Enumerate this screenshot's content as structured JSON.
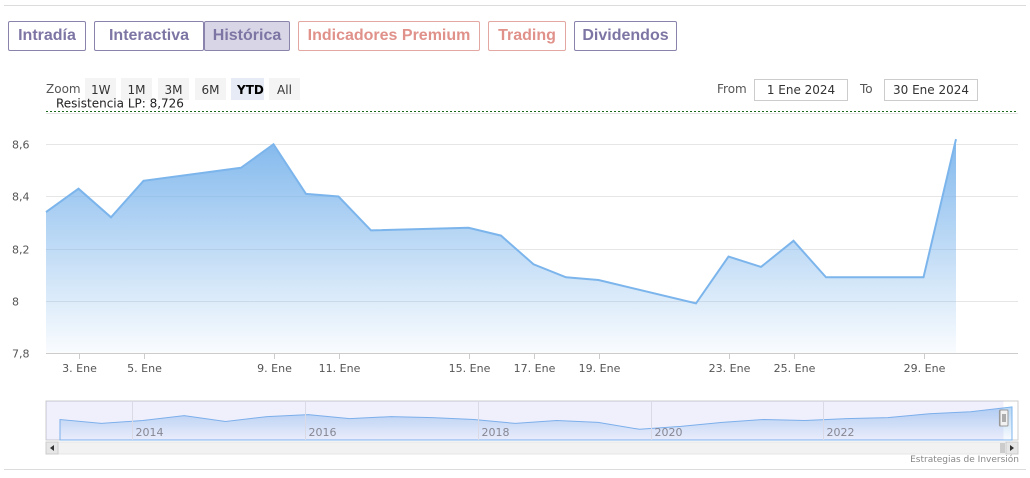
{
  "tabs": [
    {
      "label": "Intradía",
      "active": false,
      "premium": false
    },
    {
      "label": "Interactiva",
      "active": false,
      "premium": false
    },
    {
      "label": "Histórica",
      "active": true,
      "premium": false
    },
    {
      "label": "Indicadores Premium",
      "active": false,
      "premium": true
    },
    {
      "label": "Trading",
      "active": false,
      "premium": true
    },
    {
      "label": "Dividendos",
      "active": false,
      "premium": false
    }
  ],
  "range_selector": {
    "zoom_label": "Zoom",
    "buttons": [
      "1W",
      "1M",
      "3M",
      "6M",
      "YTD",
      "All"
    ],
    "selected": "YTD",
    "from_label": "From",
    "from_value": "1 Ene 2024",
    "to_label": "To",
    "to_value": "30 Ene 2024"
  },
  "colors": {
    "line": "#7cb5ec",
    "area_top": "#7cb5ec",
    "area_bottom": "#ffffff",
    "resistance_line": "#1c6b1c",
    "tab_border": "#8a84ad",
    "tab_text": "#7d75a4",
    "premium_text": "#e0918a"
  },
  "chart_data": {
    "type": "area",
    "x": [
      "2 Ene",
      "3 Ene",
      "4 Ene",
      "5 Ene",
      "8 Ene",
      "9 Ene",
      "10 Ene",
      "11 Ene",
      "12 Ene",
      "15 Ene",
      "16 Ene",
      "17 Ene",
      "18 Ene",
      "19 Ene",
      "22 Ene",
      "23 Ene",
      "24 Ene",
      "25 Ene",
      "26 Ene",
      "29 Ene",
      "30 Ene"
    ],
    "x_day": [
      2,
      3,
      4,
      5,
      8,
      9,
      10,
      11,
      12,
      15,
      16,
      17,
      18,
      19,
      22,
      23,
      24,
      25,
      26,
      29,
      30
    ],
    "values": [
      8.34,
      8.43,
      8.32,
      8.46,
      8.51,
      8.6,
      8.41,
      8.4,
      8.27,
      8.28,
      8.25,
      8.14,
      8.09,
      8.08,
      7.99,
      8.17,
      8.13,
      8.23,
      8.09,
      8.09,
      8.62
    ],
    "ylim": [
      7.8,
      8.72
    ],
    "yticks": [
      {
        "value": 7.8,
        "label": "7,8"
      },
      {
        "value": 8.0,
        "label": "8"
      },
      {
        "value": 8.2,
        "label": "8,2"
      },
      {
        "value": 8.4,
        "label": "8,4"
      },
      {
        "value": 8.6,
        "label": "8,6"
      }
    ],
    "xticks": [
      "3. Ene",
      "5. Ene",
      "9. Ene",
      "11. Ene",
      "15. Ene",
      "17. Ene",
      "19. Ene",
      "23. Ene",
      "25. Ene",
      "29. Ene"
    ],
    "grid": true,
    "plot_lines": [
      {
        "label": "Resistencia LP: 8,726",
        "value": 8.726,
        "style": "dashed"
      }
    ],
    "navigator": {
      "type": "area",
      "xticks": [
        "2014",
        "2016",
        "2018",
        "2020",
        "2022"
      ],
      "values": [
        7.6,
        7.2,
        7.5,
        8.0,
        7.4,
        7.9,
        8.1,
        7.7,
        7.9,
        7.8,
        7.6,
        7.2,
        7.5,
        7.3,
        6.6,
        6.9,
        7.3,
        7.6,
        7.5,
        7.7,
        7.8,
        8.2,
        8.4,
        8.9
      ],
      "selected_range_fraction": [
        0.985,
        1.0
      ]
    }
  },
  "credits": "Estrategias de Inversión"
}
